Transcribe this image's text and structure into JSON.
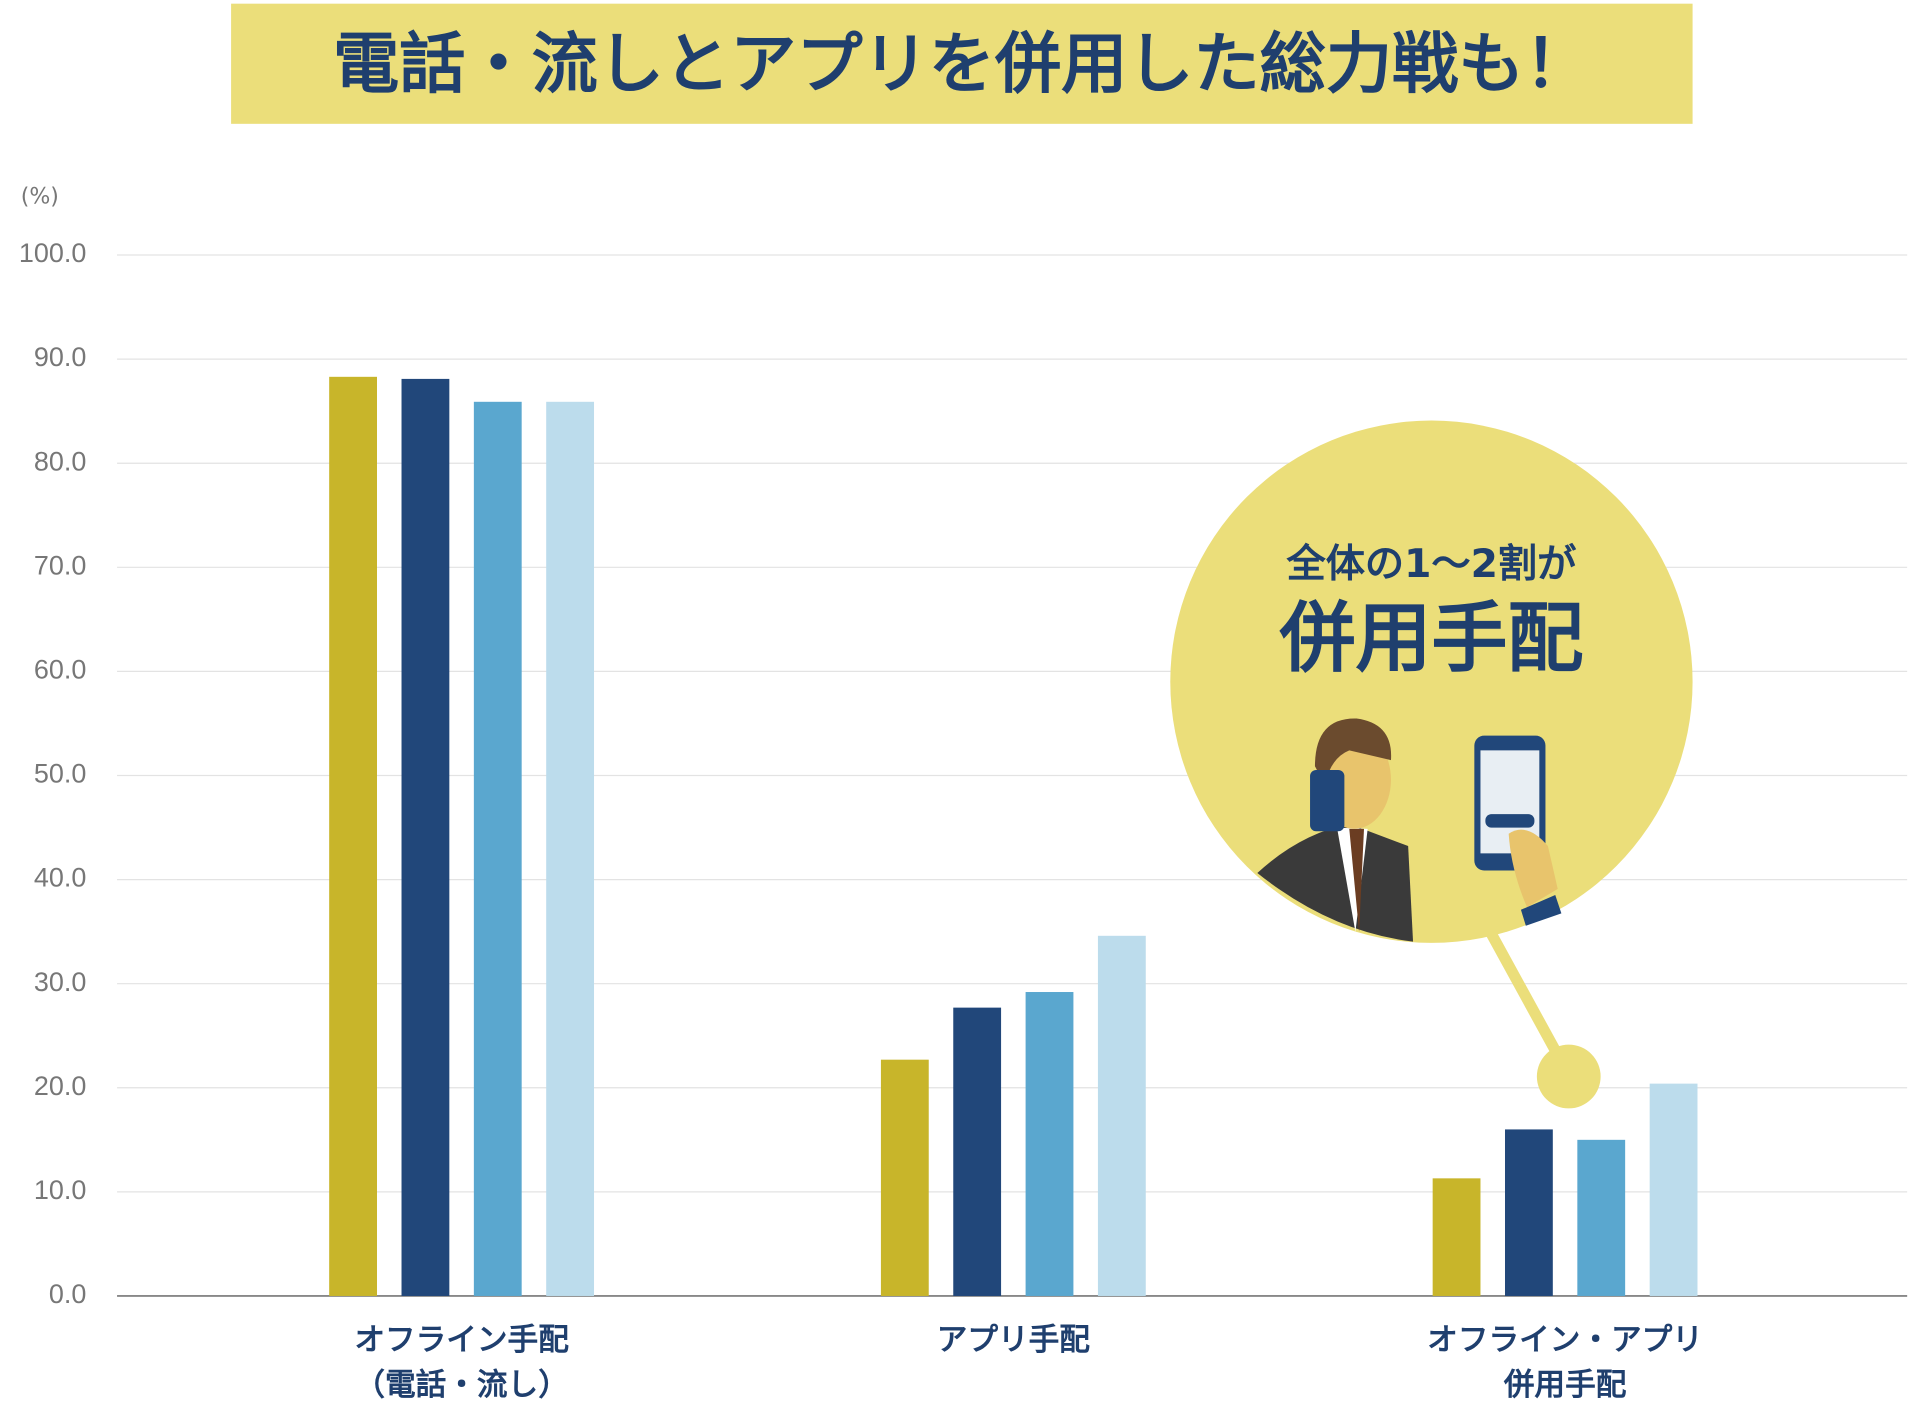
{
  "chart_data": {
    "type": "bar",
    "title": "電話・流しとアプリを併用した総力戦も！",
    "y_label": "(%)",
    "categories": [
      [
        "オフライン手配",
        "（電話・流し）"
      ],
      [
        "アプリ手配"
      ],
      [
        "オフライン・アプリ",
        "併用手配"
      ]
    ],
    "series": [
      {
        "color": "#c8b52a",
        "values": [
          88.3,
          22.7,
          11.3
        ]
      },
      {
        "color": "#21477a",
        "values": [
          88.1,
          27.7,
          16.0
        ]
      },
      {
        "color": "#5aa7cf",
        "values": [
          85.9,
          29.2,
          15.0
        ]
      },
      {
        "color": "#bcdcec",
        "values": [
          85.9,
          34.6,
          20.4
        ]
      }
    ],
    "ylim": [
      0,
      100
    ],
    "yticks": [
      {
        "value": 0,
        "label": "0.0"
      },
      {
        "value": 10,
        "label": "10.0"
      },
      {
        "value": 20,
        "label": "20.0"
      },
      {
        "value": 30,
        "label": "30.0"
      },
      {
        "value": 40,
        "label": "40.0"
      },
      {
        "value": 50,
        "label": "50.0"
      },
      {
        "value": 60,
        "label": "60.0"
      },
      {
        "value": 70,
        "label": "70.0"
      },
      {
        "value": 80,
        "label": "80.0"
      },
      {
        "value": 90,
        "label": "90.0"
      },
      {
        "value": 100,
        "label": "100.0"
      }
    ],
    "grid": true,
    "annotation": {
      "line1": "全体の1〜2割が",
      "line2": "併用手配"
    }
  }
}
